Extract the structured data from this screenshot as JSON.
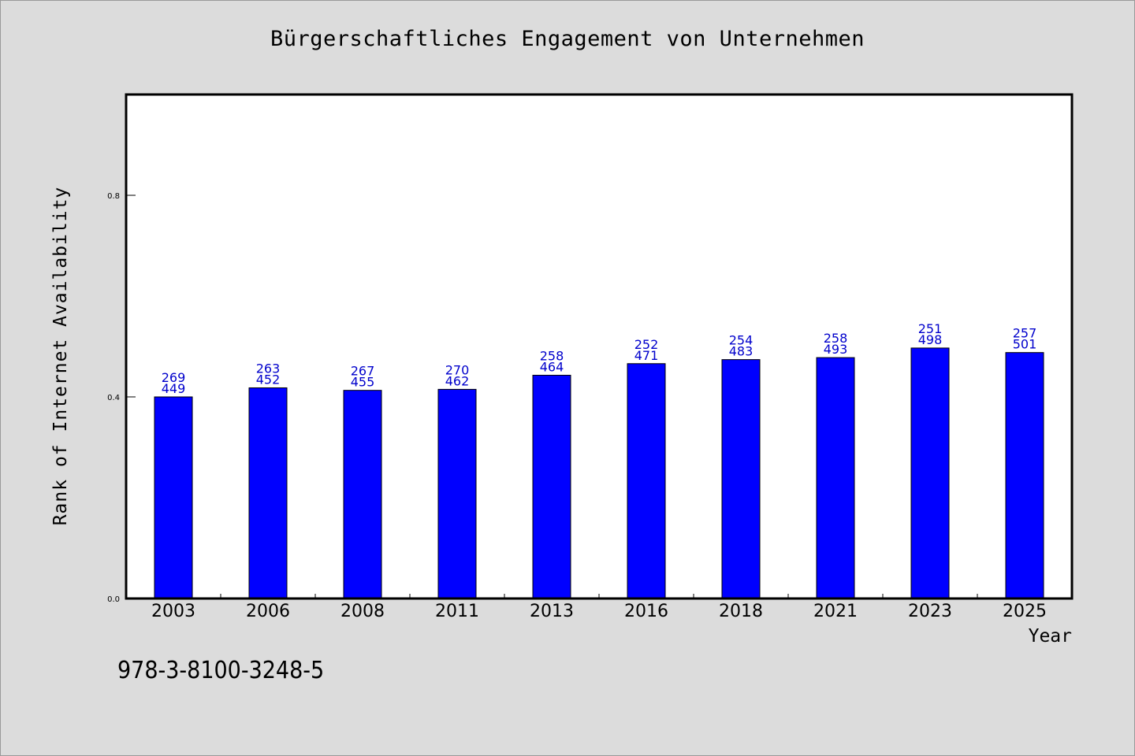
{
  "chart_data": {
    "type": "bar",
    "title": "Bürgerschaftliches Engagement von Unternehmen",
    "xlabel": "Year",
    "ylabel": "Rank of Internet Availability",
    "categories": [
      "2003",
      "2006",
      "2008",
      "2011",
      "2013",
      "2016",
      "2018",
      "2021",
      "2023",
      "2025"
    ],
    "values": [
      0.4,
      0.418,
      0.413,
      0.415,
      0.443,
      0.466,
      0.474,
      0.478,
      0.497,
      0.488
    ],
    "bar_labels": [
      {
        "top": "269",
        "bottom": "449"
      },
      {
        "top": "263",
        "bottom": "452"
      },
      {
        "top": "267",
        "bottom": "455"
      },
      {
        "top": "270",
        "bottom": "462"
      },
      {
        "top": "258",
        "bottom": "464"
      },
      {
        "top": "252",
        "bottom": "471"
      },
      {
        "top": "254",
        "bottom": "483"
      },
      {
        "top": "258",
        "bottom": "493"
      },
      {
        "top": "251",
        "bottom": "498"
      },
      {
        "top": "257",
        "bottom": "501"
      }
    ],
    "yticks": [
      "0.0",
      "0.4",
      "0.8"
    ],
    "ylim": [
      0,
      1.0
    ],
    "grid": false,
    "legend": "none",
    "colors": {
      "bar_fill": "#0000ff",
      "bar_edge": "#000000",
      "label": "#0000cc",
      "plot_background": "#ffffff",
      "figure_background": "#dcdcdc"
    }
  },
  "footer": {
    "isbn": "978-3-8100-3248-5"
  }
}
